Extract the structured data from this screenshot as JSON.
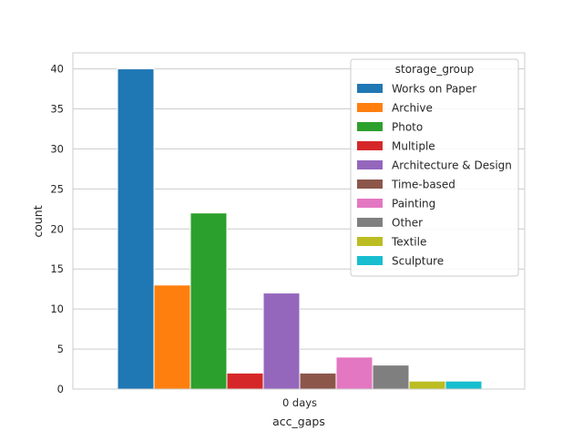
{
  "chart_data": {
    "type": "bar",
    "title": "",
    "xlabel": "acc_gaps",
    "ylabel": "count",
    "categories": [
      "0 days"
    ],
    "ylim": [
      0,
      42
    ],
    "yticks": [
      0,
      5,
      10,
      15,
      20,
      25,
      30,
      35,
      40
    ],
    "grid": true,
    "legend": {
      "title": "storage_group",
      "placement": "top-right"
    },
    "series": [
      {
        "name": "Works on Paper",
        "color": "#1f77b4",
        "values": [
          40
        ]
      },
      {
        "name": "Archive",
        "color": "#ff7f0e",
        "values": [
          13
        ]
      },
      {
        "name": "Photo",
        "color": "#2ca02c",
        "values": [
          22
        ]
      },
      {
        "name": "Multiple",
        "color": "#d62728",
        "values": [
          2
        ]
      },
      {
        "name": "Architecture & Design",
        "color": "#9467bd",
        "values": [
          12
        ]
      },
      {
        "name": "Time-based",
        "color": "#8c564b",
        "values": [
          2
        ]
      },
      {
        "name": "Painting",
        "color": "#e377c2",
        "values": [
          4
        ]
      },
      {
        "name": "Other",
        "color": "#7f7f7f",
        "values": [
          3
        ]
      },
      {
        "name": "Textile",
        "color": "#bcbd22",
        "values": [
          1
        ]
      },
      {
        "name": "Sculpture",
        "color": "#17becf",
        "values": [
          1
        ]
      }
    ]
  }
}
